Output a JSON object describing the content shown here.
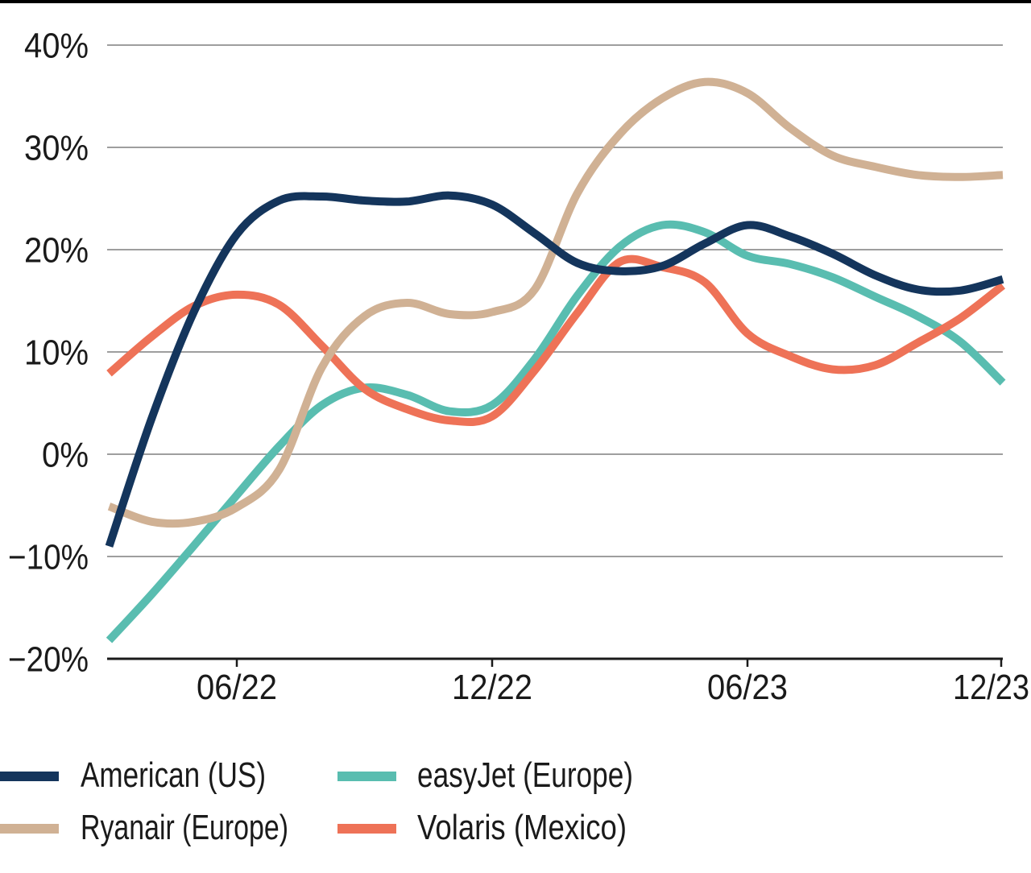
{
  "page": {
    "background": "#ffffff",
    "top_rule_color": "#000000",
    "text_color": "#1a1a1a",
    "gridline_color": "#7f7f7f",
    "axis_color": "#1a1a1a"
  },
  "chart_data": {
    "type": "line",
    "title": "",
    "xlabel": "",
    "ylabel": "",
    "grid": "horizontal",
    "legend_position": "bottom",
    "ylim": [
      -20,
      40
    ],
    "x": [
      "03/22",
      "04/22",
      "05/22",
      "06/22",
      "07/22",
      "08/22",
      "09/22",
      "10/22",
      "11/22",
      "12/22",
      "01/23",
      "02/23",
      "03/23",
      "04/23",
      "05/23",
      "06/23",
      "07/23",
      "08/23",
      "09/23",
      "10/23",
      "11/23",
      "12/23"
    ],
    "yticks": [
      {
        "value": 40,
        "label": "40%",
        "is_axis": false
      },
      {
        "value": 30,
        "label": "30%",
        "is_axis": false
      },
      {
        "value": 20,
        "label": "20%",
        "is_axis": false
      },
      {
        "value": 10,
        "label": "10%",
        "is_axis": false
      },
      {
        "value": 0,
        "label": "0%",
        "is_axis": false
      },
      {
        "value": -10,
        "label": "−10%",
        "is_axis": false
      },
      {
        "value": -20,
        "label": "−20%",
        "is_axis": true
      }
    ],
    "xticks": [
      {
        "label": "06/22",
        "month_index": 3
      },
      {
        "label": "12/22",
        "month_index": 9
      },
      {
        "label": "06/23",
        "month_index": 15
      },
      {
        "label": "12/23",
        "month_index": 21
      }
    ],
    "series": [
      {
        "name": "American (US)",
        "color": "#14355c",
        "z": 3,
        "values": [
          -9.0,
          3.5,
          14.0,
          21.5,
          24.8,
          25.2,
          24.8,
          24.7,
          25.3,
          24.4,
          21.6,
          18.7,
          17.9,
          18.4,
          20.6,
          22.4,
          21.3,
          19.6,
          17.5,
          16.1,
          16.0,
          17.1
        ]
      },
      {
        "name": "Ryanair (Europe)",
        "color": "#d0b194",
        "z": 2,
        "values": [
          -5.1,
          -6.6,
          -6.6,
          -5.2,
          -1.5,
          8.5,
          13.5,
          14.8,
          13.7,
          13.9,
          16.1,
          25.5,
          31.3,
          34.8,
          36.4,
          35.3,
          31.9,
          29.2,
          28.1,
          27.3,
          27.1,
          27.3
        ]
      },
      {
        "name": "easyJet (Europe)",
        "color": "#59bdb0",
        "z": 0,
        "values": [
          -18.2,
          -13.7,
          -8.9,
          -4.0,
          0.8,
          4.8,
          6.5,
          5.8,
          4.2,
          4.8,
          9.3,
          15.5,
          20.3,
          22.4,
          21.7,
          19.4,
          18.6,
          17.3,
          15.4,
          13.5,
          11.0,
          7.0
        ]
      },
      {
        "name": "Volaris (Mexico)",
        "color": "#ee7257",
        "z": 1,
        "values": [
          7.9,
          11.5,
          14.5,
          15.6,
          14.6,
          10.6,
          6.4,
          4.4,
          3.3,
          3.7,
          8.2,
          13.8,
          18.8,
          18.3,
          16.8,
          11.8,
          9.6,
          8.3,
          8.7,
          10.9,
          13.3,
          16.5
        ]
      }
    ]
  },
  "legend": {
    "items": [
      {
        "label": "American (US)",
        "color": "#14355c",
        "row": 0,
        "col": 0
      },
      {
        "label": "easyJet (Europe)",
        "color": "#59bdb0",
        "row": 0,
        "col": 1
      },
      {
        "label": "Ryanair (Europe)",
        "color": "#d0b194",
        "row": 1,
        "col": 0
      },
      {
        "label": "Volaris (Mexico)",
        "color": "#ee7257",
        "row": 1,
        "col": 1
      }
    ]
  }
}
